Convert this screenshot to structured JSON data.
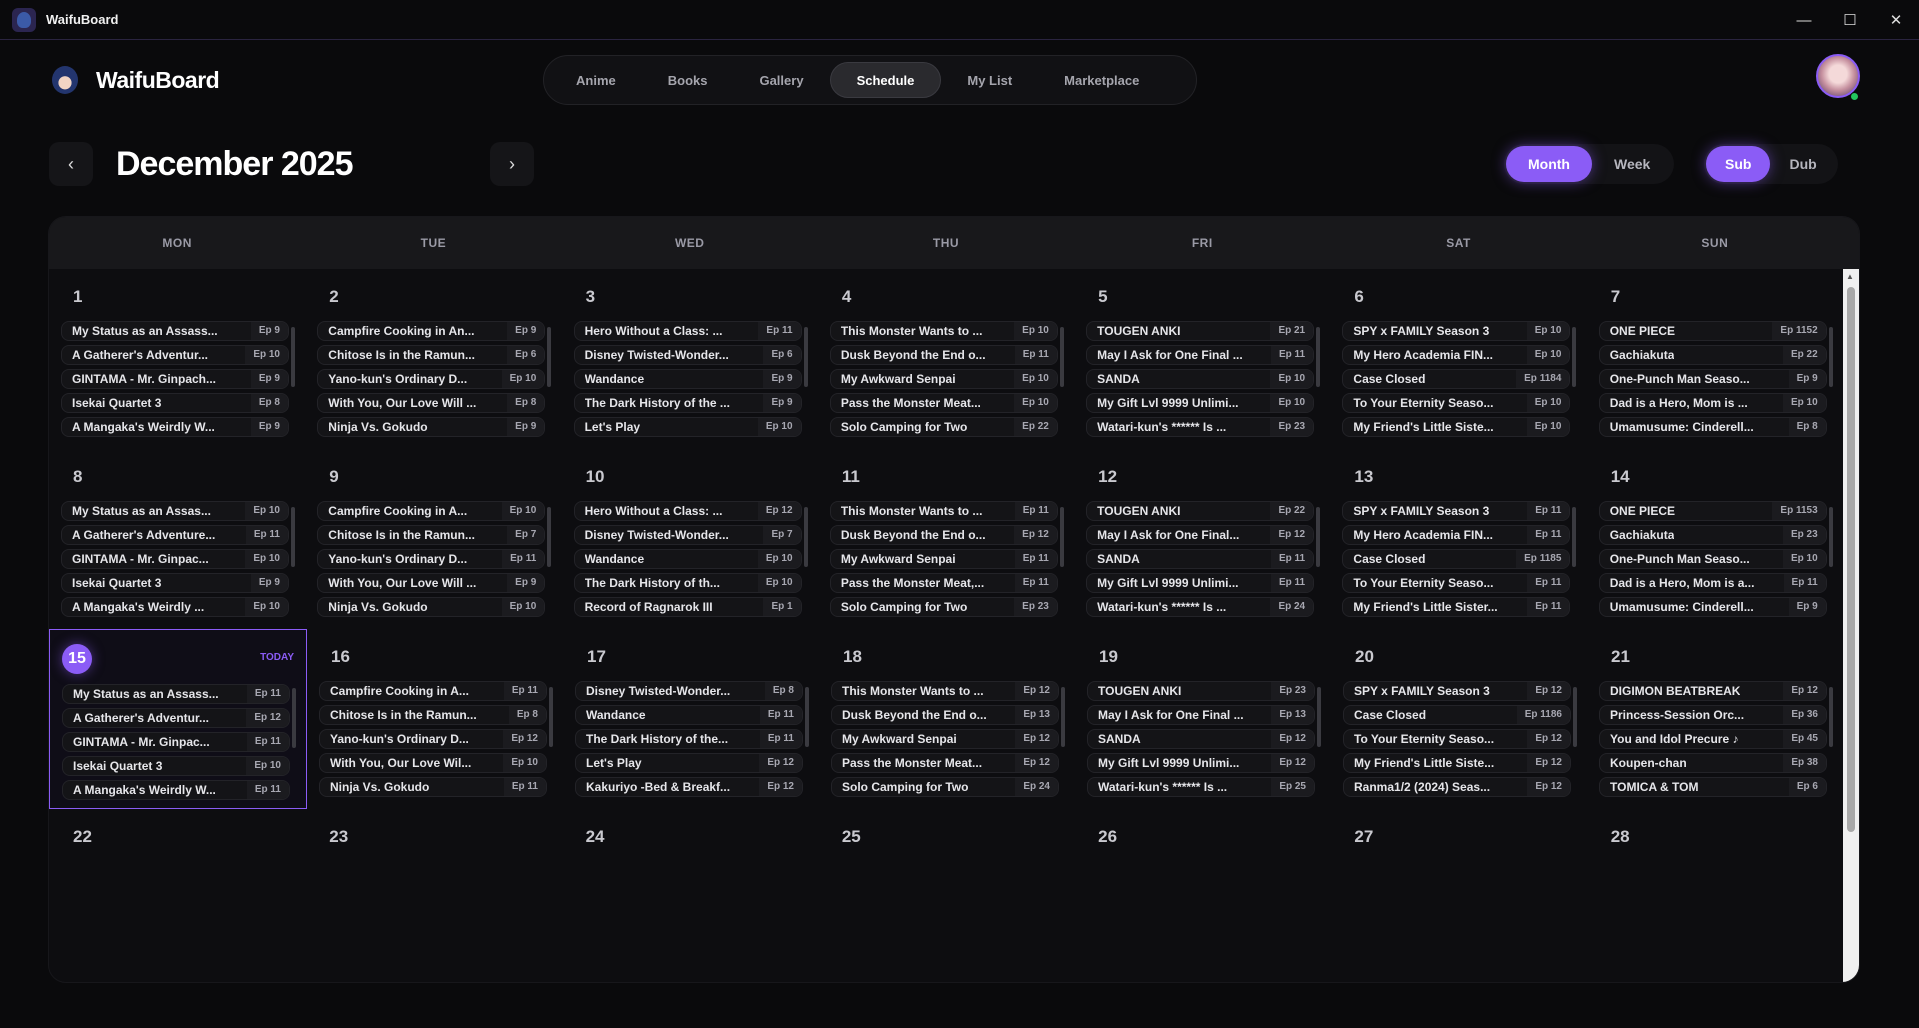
{
  "window": {
    "title": "WaifuBoard",
    "controls": [
      "—",
      "☐",
      "✕"
    ]
  },
  "header": {
    "brand": "WaifuBoard",
    "nav": [
      {
        "label": "Anime",
        "active": false
      },
      {
        "label": "Books",
        "active": false
      },
      {
        "label": "Gallery",
        "active": false
      },
      {
        "label": "Schedule",
        "active": true
      },
      {
        "label": "My List",
        "active": false
      },
      {
        "label": "Marketplace",
        "active": false
      }
    ]
  },
  "schedule": {
    "month_title": "December 2025",
    "prev_icon": "‹",
    "next_icon": "›",
    "view_toggle": [
      {
        "label": "Month",
        "active": true
      },
      {
        "label": "Week",
        "active": false
      }
    ],
    "audio_toggle": [
      {
        "label": "Sub",
        "active": true
      },
      {
        "label": "Dub",
        "active": false
      }
    ],
    "weekdays": [
      "MON",
      "TUE",
      "WED",
      "THU",
      "FRI",
      "SAT",
      "SUN"
    ],
    "today_label": "TODAY",
    "accent_color": "#8b5cf6",
    "weeks": [
      [
        {
          "date": "1",
          "items": [
            [
              "My Status as an Assass...",
              "Ep 9"
            ],
            [
              "A Gatherer's Adventur...",
              "Ep 10"
            ],
            [
              "GINTAMA - Mr. Ginpach...",
              "Ep 9"
            ],
            [
              "Isekai Quartet 3",
              "Ep 8"
            ],
            [
              "A Mangaka's Weirdly W...",
              "Ep 9"
            ]
          ]
        },
        {
          "date": "2",
          "items": [
            [
              "Campfire Cooking in An...",
              "Ep 9"
            ],
            [
              "Chitose Is in the Ramun...",
              "Ep 6"
            ],
            [
              "Yano-kun's Ordinary D...",
              "Ep 10"
            ],
            [
              "With You, Our Love Will ...",
              "Ep 8"
            ],
            [
              "Ninja Vs. Gokudo",
              "Ep 9"
            ]
          ]
        },
        {
          "date": "3",
          "items": [
            [
              "Hero Without a Class: ...",
              "Ep 11"
            ],
            [
              "Disney Twisted-Wonder...",
              "Ep 6"
            ],
            [
              "Wandance",
              "Ep 9"
            ],
            [
              "The Dark History of the ...",
              "Ep 9"
            ],
            [
              "Let's Play",
              "Ep 10"
            ]
          ]
        },
        {
          "date": "4",
          "items": [
            [
              "This Monster Wants to ...",
              "Ep 10"
            ],
            [
              "Dusk Beyond the End o...",
              "Ep 11"
            ],
            [
              "My Awkward Senpai",
              "Ep 10"
            ],
            [
              "Pass the Monster Meat...",
              "Ep 10"
            ],
            [
              "Solo Camping for Two",
              "Ep 22"
            ]
          ]
        },
        {
          "date": "5",
          "items": [
            [
              "TOUGEN ANKI",
              "Ep 21"
            ],
            [
              "May I Ask for One Final ...",
              "Ep 11"
            ],
            [
              "SANDA",
              "Ep 10"
            ],
            [
              "My Gift Lvl 9999 Unlimi...",
              "Ep 10"
            ],
            [
              "Watari-kun's ****** Is ...",
              "Ep 23"
            ]
          ]
        },
        {
          "date": "6",
          "items": [
            [
              "SPY x FAMILY Season 3",
              "Ep 10"
            ],
            [
              "My Hero Academia FIN...",
              "Ep 10"
            ],
            [
              "Case Closed",
              "Ep 1184"
            ],
            [
              "To Your Eternity Seaso...",
              "Ep 10"
            ],
            [
              "My Friend's Little Siste...",
              "Ep 10"
            ]
          ]
        },
        {
          "date": "7",
          "items": [
            [
              "ONE PIECE",
              "Ep 1152"
            ],
            [
              "Gachiakuta",
              "Ep 22"
            ],
            [
              "One-Punch Man Seaso...",
              "Ep 9"
            ],
            [
              "Dad is a Hero, Mom is ...",
              "Ep 10"
            ],
            [
              "Umamusume: Cinderell...",
              "Ep 8"
            ]
          ]
        }
      ],
      [
        {
          "date": "8",
          "items": [
            [
              "My Status as an Assas...",
              "Ep 10"
            ],
            [
              "A Gatherer's Adventure...",
              "Ep 11"
            ],
            [
              "GINTAMA - Mr. Ginpac...",
              "Ep 10"
            ],
            [
              "Isekai Quartet 3",
              "Ep 9"
            ],
            [
              "A Mangaka's Weirdly ...",
              "Ep 10"
            ]
          ]
        },
        {
          "date": "9",
          "items": [
            [
              "Campfire Cooking in A...",
              "Ep 10"
            ],
            [
              "Chitose Is in the Ramun...",
              "Ep 7"
            ],
            [
              "Yano-kun's Ordinary D...",
              "Ep 11"
            ],
            [
              "With You, Our Love Will ...",
              "Ep 9"
            ],
            [
              "Ninja Vs. Gokudo",
              "Ep 10"
            ]
          ]
        },
        {
          "date": "10",
          "items": [
            [
              "Hero Without a Class: ...",
              "Ep 12"
            ],
            [
              "Disney Twisted-Wonder...",
              "Ep 7"
            ],
            [
              "Wandance",
              "Ep 10"
            ],
            [
              "The Dark History of th...",
              "Ep 10"
            ],
            [
              "Record of Ragnarok III",
              "Ep 1"
            ]
          ]
        },
        {
          "date": "11",
          "items": [
            [
              "This Monster Wants to ...",
              "Ep 11"
            ],
            [
              "Dusk Beyond the End o...",
              "Ep 12"
            ],
            [
              "My Awkward Senpai",
              "Ep 11"
            ],
            [
              "Pass the Monster Meat,...",
              "Ep 11"
            ],
            [
              "Solo Camping for Two",
              "Ep 23"
            ]
          ]
        },
        {
          "date": "12",
          "items": [
            [
              "TOUGEN ANKI",
              "Ep 22"
            ],
            [
              "May I Ask for One Final...",
              "Ep 12"
            ],
            [
              "SANDA",
              "Ep 11"
            ],
            [
              "My Gift Lvl 9999 Unlimi...",
              "Ep 11"
            ],
            [
              "Watari-kun's ****** Is ...",
              "Ep 24"
            ]
          ]
        },
        {
          "date": "13",
          "items": [
            [
              "SPY x FAMILY Season 3",
              "Ep 11"
            ],
            [
              "My Hero Academia FIN...",
              "Ep 11"
            ],
            [
              "Case Closed",
              "Ep 1185"
            ],
            [
              "To Your Eternity Seaso...",
              "Ep 11"
            ],
            [
              "My Friend's Little Sister...",
              "Ep 11"
            ]
          ]
        },
        {
          "date": "14",
          "items": [
            [
              "ONE PIECE",
              "Ep 1153"
            ],
            [
              "Gachiakuta",
              "Ep 23"
            ],
            [
              "One-Punch Man Seaso...",
              "Ep 10"
            ],
            [
              "Dad is a Hero, Mom is a...",
              "Ep 11"
            ],
            [
              "Umamusume: Cinderell...",
              "Ep 9"
            ]
          ]
        }
      ],
      [
        {
          "date": "15",
          "today": true,
          "items": [
            [
              "My Status as an Assass...",
              "Ep 11"
            ],
            [
              "A Gatherer's Adventur...",
              "Ep 12"
            ],
            [
              "GINTAMA - Mr. Ginpac...",
              "Ep 11"
            ],
            [
              "Isekai Quartet 3",
              "Ep 10"
            ],
            [
              "A Mangaka's Weirdly W...",
              "Ep 11"
            ]
          ]
        },
        {
          "date": "16",
          "items": [
            [
              "Campfire Cooking in A...",
              "Ep 11"
            ],
            [
              "Chitose Is in the Ramun...",
              "Ep 8"
            ],
            [
              "Yano-kun's Ordinary D...",
              "Ep 12"
            ],
            [
              "With You, Our Love Wil...",
              "Ep 10"
            ],
            [
              "Ninja Vs. Gokudo",
              "Ep 11"
            ]
          ]
        },
        {
          "date": "17",
          "items": [
            [
              "Disney Twisted-Wonder...",
              "Ep 8"
            ],
            [
              "Wandance",
              "Ep 11"
            ],
            [
              "The Dark History of the...",
              "Ep 11"
            ],
            [
              "Let's Play",
              "Ep 12"
            ],
            [
              "Kakuriyo -Bed & Breakf...",
              "Ep 12"
            ]
          ]
        },
        {
          "date": "18",
          "items": [
            [
              "This Monster Wants to ...",
              "Ep 12"
            ],
            [
              "Dusk Beyond the End o...",
              "Ep 13"
            ],
            [
              "My Awkward Senpai",
              "Ep 12"
            ],
            [
              "Pass the Monster Meat...",
              "Ep 12"
            ],
            [
              "Solo Camping for Two",
              "Ep 24"
            ]
          ]
        },
        {
          "date": "19",
          "items": [
            [
              "TOUGEN ANKI",
              "Ep 23"
            ],
            [
              "May I Ask for One Final ...",
              "Ep 13"
            ],
            [
              "SANDA",
              "Ep 12"
            ],
            [
              "My Gift Lvl 9999 Unlimi...",
              "Ep 12"
            ],
            [
              "Watari-kun's ****** Is ...",
              "Ep 25"
            ]
          ]
        },
        {
          "date": "20",
          "items": [
            [
              "SPY x FAMILY Season 3",
              "Ep 12"
            ],
            [
              "Case Closed",
              "Ep 1186"
            ],
            [
              "To Your Eternity Seaso...",
              "Ep 12"
            ],
            [
              "My Friend's Little Siste...",
              "Ep 12"
            ],
            [
              "Ranma1/2 (2024) Seas...",
              "Ep 12"
            ]
          ]
        },
        {
          "date": "21",
          "items": [
            [
              "DIGIMON BEATBREAK",
              "Ep 12"
            ],
            [
              "Princess-Session Orc...",
              "Ep 36"
            ],
            [
              "You and Idol Precure ♪",
              "Ep 45"
            ],
            [
              "Koupen-chan",
              "Ep 38"
            ],
            [
              "TOMICA & TOM",
              "Ep 6"
            ]
          ]
        }
      ],
      [
        {
          "date": "22",
          "items": []
        },
        {
          "date": "23",
          "items": []
        },
        {
          "date": "24",
          "items": []
        },
        {
          "date": "25",
          "items": []
        },
        {
          "date": "26",
          "items": []
        },
        {
          "date": "27",
          "items": []
        },
        {
          "date": "28",
          "items": []
        }
      ]
    ]
  }
}
